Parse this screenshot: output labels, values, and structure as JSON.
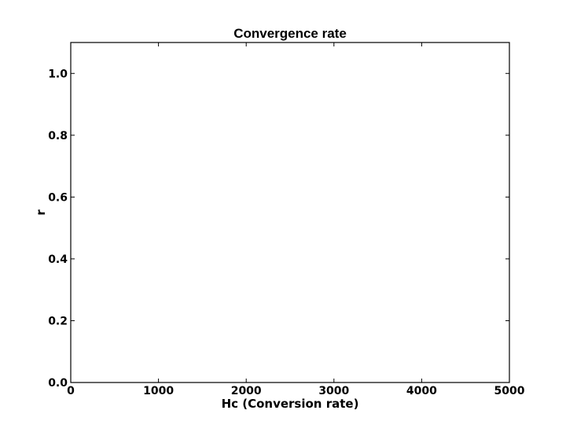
{
  "chart_data": {
    "type": "line",
    "title": "Convergence rate",
    "xlabel": "Hc (Conversion rate)",
    "ylabel": "r",
    "xlim": [
      0,
      5000
    ],
    "ylim": [
      0,
      1.1
    ],
    "xticks": [
      0,
      1000,
      2000,
      3000,
      4000,
      5000
    ],
    "xtick_labels": [
      "0",
      "1000",
      "2000",
      "3000",
      "4000",
      "5000"
    ],
    "yticks": [
      0.0,
      0.2,
      0.4,
      0.6,
      0.8,
      1.0
    ],
    "ytick_labels": [
      "0.0",
      "0.2",
      "0.4",
      "0.6",
      "0.8",
      "1.0"
    ],
    "grid": false,
    "series": []
  }
}
